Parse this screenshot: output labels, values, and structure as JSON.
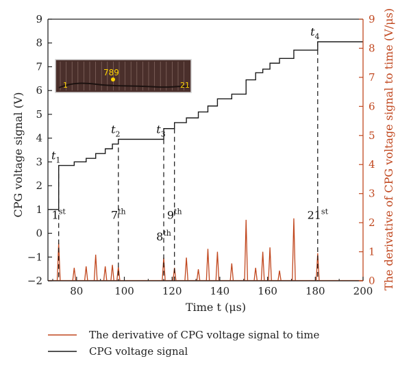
{
  "chart_data": {
    "type": "line",
    "xlabel": "Time t (μs)",
    "ylabel_left": "CPG voltage signal (V)",
    "ylabel_right": "The derivative of CPG voltage signal to time (V/μs)",
    "xlim": [
      68,
      200
    ],
    "ylim_left": [
      -2,
      9
    ],
    "ylim_right": [
      0,
      9
    ],
    "x_ticks": [
      "80",
      "100",
      "120",
      "140",
      "160",
      "180",
      "200"
    ],
    "y_left_ticks": [
      "−2",
      "−1",
      "0",
      "1",
      "2",
      "3",
      "4",
      "5",
      "6",
      "7",
      "8",
      "9"
    ],
    "y_right_ticks": [
      "0",
      "1",
      "2",
      "3",
      "4",
      "5",
      "6",
      "7",
      "8",
      "9"
    ],
    "colors": {
      "voltage": "#1a1a1a",
      "derivative": "#c0461d",
      "axis": "#222222"
    },
    "legend": {
      "position": "bottom"
    },
    "series": [
      {
        "name": "CPG voltage signal",
        "axis": "left",
        "style": "step",
        "points": [
          [
            68,
            1.0
          ],
          [
            72.5,
            1.0
          ],
          [
            72.5,
            2.85
          ],
          [
            79,
            2.85
          ],
          [
            79,
            3.0
          ],
          [
            84,
            3.0
          ],
          [
            84,
            3.15
          ],
          [
            88,
            3.15
          ],
          [
            88,
            3.35
          ],
          [
            92,
            3.35
          ],
          [
            92,
            3.55
          ],
          [
            95,
            3.55
          ],
          [
            95,
            3.75
          ],
          [
            97.5,
            3.75
          ],
          [
            97.5,
            3.95
          ],
          [
            116.5,
            3.95
          ],
          [
            116.5,
            4.4
          ],
          [
            121,
            4.4
          ],
          [
            121,
            4.65
          ],
          [
            126,
            4.65
          ],
          [
            126,
            4.85
          ],
          [
            131,
            4.85
          ],
          [
            131,
            5.1
          ],
          [
            135,
            5.1
          ],
          [
            135,
            5.35
          ],
          [
            139,
            5.35
          ],
          [
            139,
            5.65
          ],
          [
            145,
            5.65
          ],
          [
            145,
            5.85
          ],
          [
            151,
            5.85
          ],
          [
            151,
            6.45
          ],
          [
            155,
            6.45
          ],
          [
            155,
            6.75
          ],
          [
            158,
            6.75
          ],
          [
            158,
            6.9
          ],
          [
            161,
            6.9
          ],
          [
            161,
            7.15
          ],
          [
            165,
            7.15
          ],
          [
            165,
            7.35
          ],
          [
            171,
            7.35
          ],
          [
            171,
            7.7
          ],
          [
            181,
            7.7
          ],
          [
            181,
            8.05
          ],
          [
            200,
            8.05
          ]
        ]
      },
      {
        "name": "The derivative of CPG voltage signal to time",
        "axis": "right",
        "style": "spikes",
        "x": [
          72.5,
          79,
          84,
          88,
          92,
          95,
          97.5,
          116.5,
          121,
          126,
          131,
          135,
          139,
          145,
          151,
          155,
          158,
          161,
          165,
          171,
          181
        ],
        "values": [
          1.3,
          0.45,
          0.5,
          0.9,
          0.5,
          0.55,
          0.48,
          0.8,
          0.45,
          0.8,
          0.4,
          1.1,
          1.0,
          0.6,
          2.1,
          0.45,
          1.0,
          1.15,
          0.35,
          2.15,
          0.95
        ]
      }
    ],
    "annotations": [
      {
        "base": "t",
        "sub": "1",
        "sup": "",
        "kind": "time",
        "x": 72.5,
        "y": 2.85
      },
      {
        "base": "t",
        "sub": "2",
        "sup": "",
        "kind": "time",
        "x": 97.5,
        "y": 3.95
      },
      {
        "base": "t",
        "sub": "3",
        "sup": "",
        "kind": "time",
        "x": 116.5,
        "y": 3.95
      },
      {
        "base": "t",
        "sub": "4",
        "sup": "",
        "kind": "time",
        "x": 181,
        "y": 8.05
      },
      {
        "base": "1",
        "sub": "",
        "sup": "st",
        "kind": "order",
        "x": 72.5,
        "y": 0.6
      },
      {
        "base": "7",
        "sub": "",
        "sup": "th",
        "kind": "order",
        "x": 97.5,
        "y": 0.6
      },
      {
        "base": "8",
        "sub": "",
        "sup": "th",
        "kind": "order",
        "x": 116.5,
        "y": -0.3
      },
      {
        "base": "9",
        "sub": "",
        "sup": "th",
        "kind": "order",
        "x": 121,
        "y": 0.6
      },
      {
        "base": "21",
        "sub": "",
        "sup": "st",
        "kind": "order",
        "x": 181,
        "y": 0.6
      }
    ],
    "dashed_markers": [
      {
        "x": 72.5,
        "y_from": 2.85,
        "y_to": -2
      },
      {
        "x": 97.5,
        "y_from": 3.95,
        "y_to": -2
      },
      {
        "x": 116.5,
        "y_from": 3.95,
        "y_to": -2
      },
      {
        "x": 121,
        "y_from": 4.4,
        "y_to": -2
      },
      {
        "x": 181,
        "y_from": 8.05,
        "y_to": -2
      }
    ],
    "inset": {
      "labels": [
        "789",
        "1",
        "21"
      ]
    }
  }
}
